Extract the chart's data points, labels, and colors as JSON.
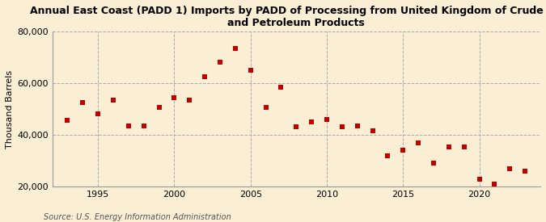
{
  "title": "Annual East Coast (PADD 1) Imports by PADD of Processing from United Kingdom of Crude Oil\nand Petroleum Products",
  "ylabel": "Thousand Barrels",
  "source": "Source: U.S. Energy Information Administration",
  "background_color": "#faefd4",
  "marker_color": "#c00000",
  "years": [
    1993,
    1994,
    1995,
    1996,
    1997,
    1998,
    1999,
    2000,
    2001,
    2002,
    2003,
    2004,
    2005,
    2006,
    2007,
    2008,
    2009,
    2010,
    2011,
    2012,
    2013,
    2014,
    2015,
    2016,
    2017,
    2018,
    2019,
    2020,
    2021,
    2022,
    2023
  ],
  "values": [
    45500,
    52500,
    48000,
    53500,
    43500,
    43500,
    50500,
    54500,
    53500,
    62500,
    68000,
    73500,
    65000,
    50500,
    58500,
    43000,
    45000,
    46000,
    43000,
    43500,
    41500,
    32000,
    34000,
    37000,
    29000,
    35500,
    35500,
    23000,
    21000,
    27000,
    26000
  ],
  "ylim": [
    20000,
    80000
  ],
  "yticks": [
    20000,
    40000,
    60000,
    80000
  ],
  "xlim": [
    1992,
    2024
  ],
  "xticks": [
    1995,
    2000,
    2005,
    2010,
    2015,
    2020
  ],
  "title_fontsize": 9,
  "tick_fontsize": 8,
  "ylabel_fontsize": 8,
  "source_fontsize": 7
}
